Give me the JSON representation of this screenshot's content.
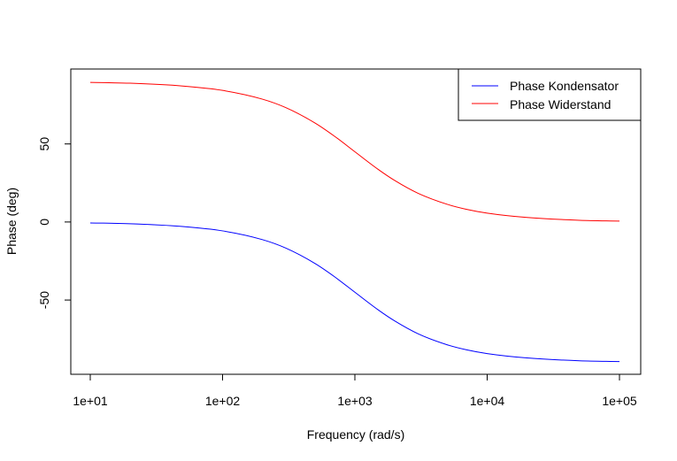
{
  "chart_data": {
    "type": "line",
    "title": "",
    "xlabel": "Frequency (rad/s)",
    "ylabel": "Phase (deg)",
    "x_scale": "log",
    "xlim": [
      10,
      100000
    ],
    "ylim": [
      -97,
      98
    ],
    "x_ticks": [
      {
        "value": 10,
        "label": "1e+01"
      },
      {
        "value": 100,
        "label": "1e+02"
      },
      {
        "value": 1000,
        "label": "1e+03"
      },
      {
        "value": 10000,
        "label": "1e+04"
      },
      {
        "value": 100000,
        "label": "1e+05"
      }
    ],
    "y_ticks": [
      {
        "value": -50,
        "label": "-50"
      },
      {
        "value": 0,
        "label": "0"
      },
      {
        "value": 50,
        "label": "50"
      }
    ],
    "grid": false,
    "legend_position": "top-right",
    "x": [
      10,
      20,
      50,
      100,
      200,
      300,
      500,
      700,
      1000,
      1500,
      2000,
      3000,
      5000,
      7000,
      10000,
      20000,
      50000,
      100000
    ],
    "series": [
      {
        "name": "Phase Kondensator",
        "color": "#0000ff",
        "values": [
          -0.6,
          -1.1,
          -2.9,
          -5.7,
          -11.3,
          -16.7,
          -26.6,
          -35.0,
          -45.0,
          -56.3,
          -63.4,
          -71.6,
          -78.7,
          -81.9,
          -84.3,
          -87.1,
          -88.9,
          -89.4
        ]
      },
      {
        "name": "Phase Widerstand",
        "color": "#ff0000",
        "values": [
          89.4,
          88.9,
          87.1,
          84.3,
          78.7,
          73.3,
          63.4,
          55.0,
          45.0,
          33.7,
          26.6,
          18.4,
          11.3,
          8.1,
          5.7,
          2.9,
          1.1,
          0.6
        ]
      }
    ]
  }
}
